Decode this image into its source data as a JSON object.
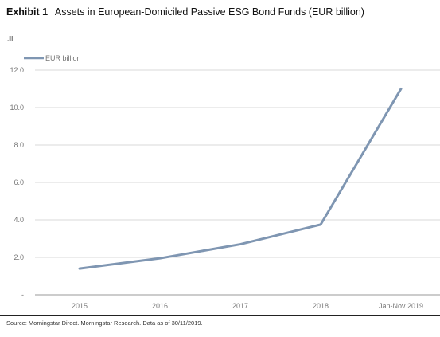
{
  "header": {
    "exhibit_label": "Exhibit 1",
    "title": "Assets in European-Domiciled Passive ESG Bond Funds (EUR billion)"
  },
  "corner_mark": ".lll",
  "footer": {
    "source": "Source: Morningstar Direct. Morningstar Research. Data as of 30/11/2019."
  },
  "colors": {
    "line": "#7f96b2",
    "grid": "#d9d9d9",
    "axis": "#999999"
  },
  "chart_data": {
    "type": "line",
    "title": "Assets in European-Domiciled Passive ESG Bond Funds (EUR billion)",
    "categories": [
      "2015",
      "2016",
      "2017",
      "2018",
      "Jan-Nov 2019"
    ],
    "series": [
      {
        "name": "EUR billion",
        "values": [
          1.4,
          1.95,
          2.7,
          3.75,
          11.0
        ]
      }
    ],
    "y_ticks": [
      "-",
      "2.0",
      "4.0",
      "6.0",
      "8.0",
      "10.0",
      "12.0"
    ],
    "ylim": [
      0,
      12
    ],
    "grid": true,
    "legend": "top-left",
    "xlabel": "",
    "ylabel": ""
  }
}
